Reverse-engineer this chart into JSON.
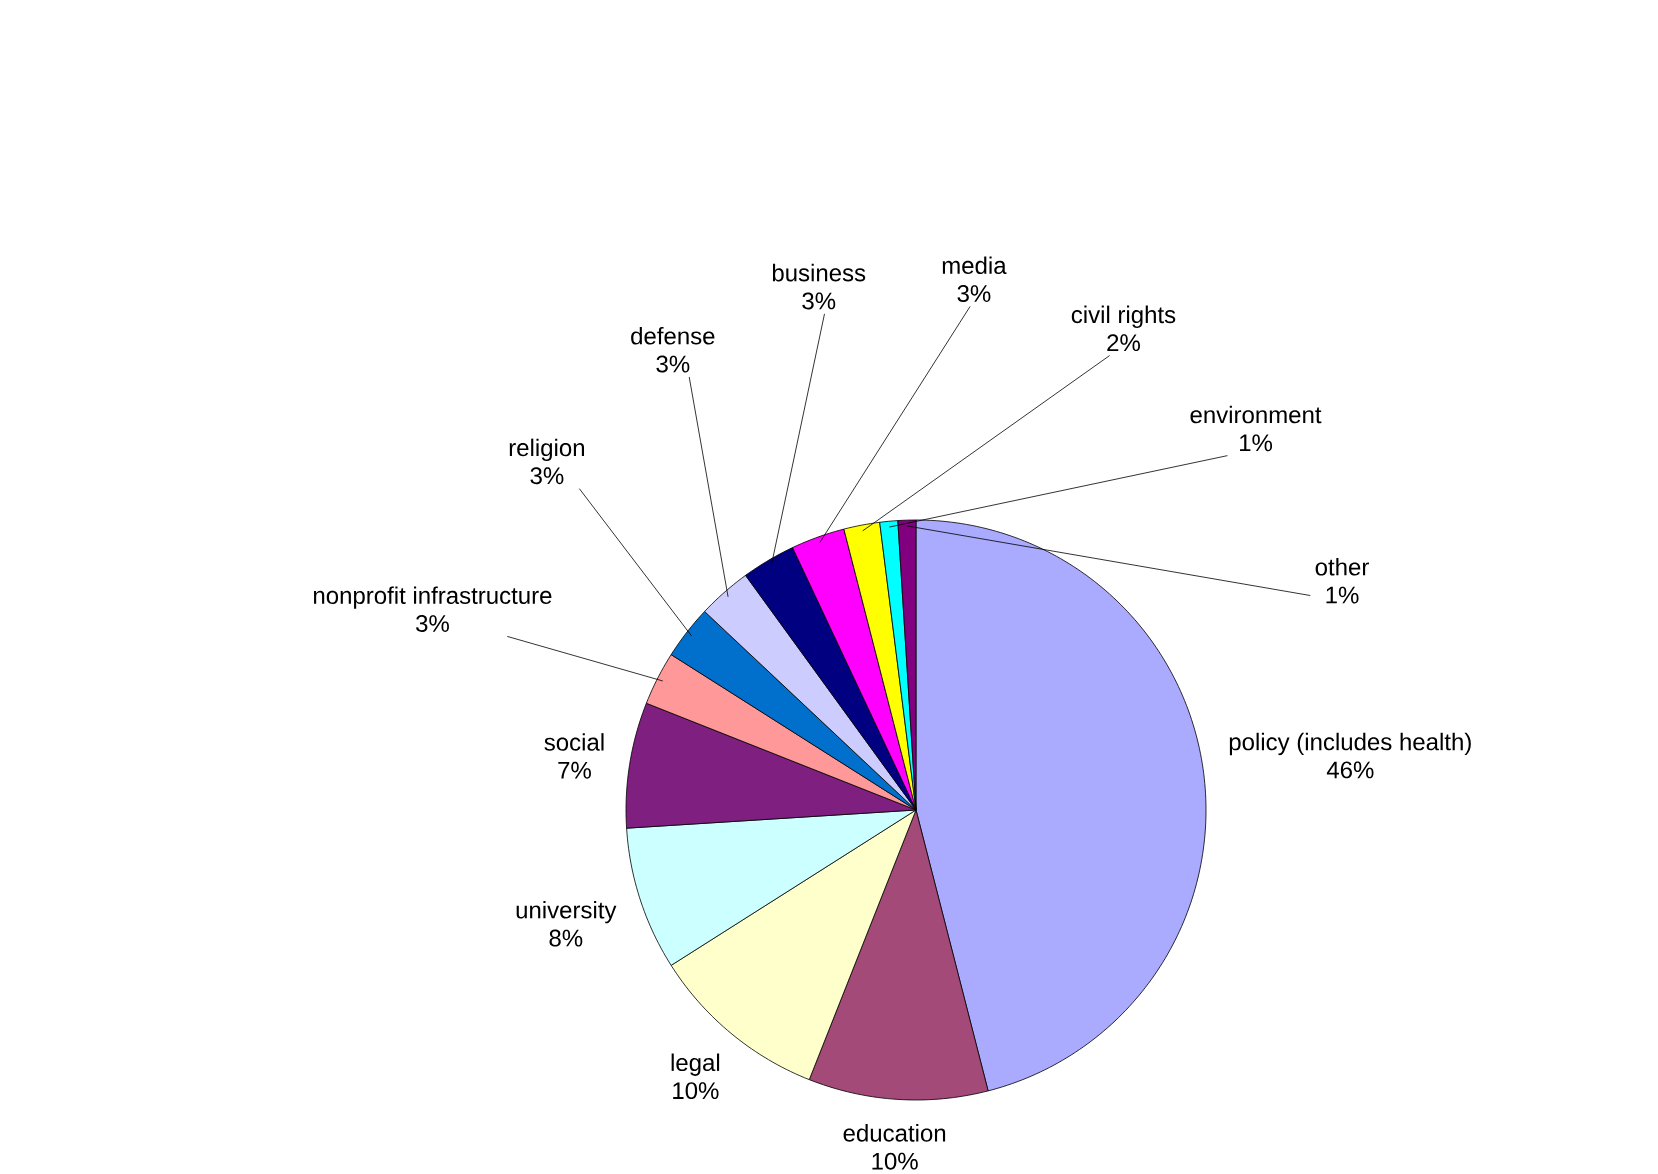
{
  "chart_data": {
    "type": "pie",
    "categories": [
      "policy (includes health)",
      "education",
      "legal",
      "university",
      "social",
      "nonprofit infrastructure",
      "religion",
      "defense",
      "business",
      "media",
      "civil rights",
      "environment",
      "other"
    ],
    "values": [
      46,
      10,
      10,
      8,
      7,
      3,
      3,
      3,
      3,
      3,
      2,
      1,
      1
    ],
    "value_labels": [
      "46%",
      "10%",
      "10%",
      "8%",
      "7%",
      "3%",
      "3%",
      "3%",
      "3%",
      "3%",
      "2%",
      "1%",
      "1%"
    ],
    "colors": [
      "#aaaaff",
      "#a34a78",
      "#ffffcc",
      "#ccffff",
      "#7f1f7f",
      "#ff9999",
      "#0070cc",
      "#ccccff",
      "#000080",
      "#ff00ff",
      "#ffff00",
      "#00ffff",
      "#800080"
    ]
  }
}
